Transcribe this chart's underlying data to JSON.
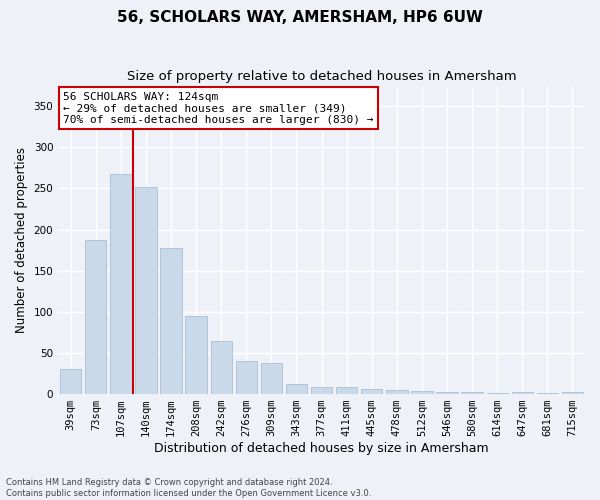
{
  "title": "56, SCHOLARS WAY, AMERSHAM, HP6 6UW",
  "subtitle": "Size of property relative to detached houses in Amersham",
  "xlabel": "Distribution of detached houses by size in Amersham",
  "ylabel": "Number of detached properties",
  "categories": [
    "39sqm",
    "73sqm",
    "107sqm",
    "140sqm",
    "174sqm",
    "208sqm",
    "242sqm",
    "276sqm",
    "309sqm",
    "343sqm",
    "377sqm",
    "411sqm",
    "445sqm",
    "478sqm",
    "512sqm",
    "546sqm",
    "580sqm",
    "614sqm",
    "647sqm",
    "681sqm",
    "715sqm"
  ],
  "values": [
    30,
    187,
    267,
    252,
    178,
    95,
    65,
    40,
    38,
    12,
    9,
    9,
    6,
    5,
    4,
    3,
    3,
    1,
    3,
    1,
    2
  ],
  "bar_color": "#c9d9ea",
  "bar_edgecolor": "#a0b8d0",
  "vline_x_idx": 2,
  "vline_color": "#cc0000",
  "annotation_line1": "56 SCHOLARS WAY: 124sqm",
  "annotation_line2": "← 29% of detached houses are smaller (349)",
  "annotation_line3": "70% of semi-detached houses are larger (830) →",
  "annotation_box_color": "#ffffff",
  "annotation_box_edgecolor": "#cc0000",
  "ylim": [
    0,
    375
  ],
  "yticks": [
    0,
    50,
    100,
    150,
    200,
    250,
    300,
    350
  ],
  "title_fontsize": 11,
  "subtitle_fontsize": 9.5,
  "xlabel_fontsize": 9,
  "ylabel_fontsize": 8.5,
  "tick_fontsize": 7.5,
  "annotation_fontsize": 8,
  "footer_text": "Contains HM Land Registry data © Crown copyright and database right 2024.\nContains public sector information licensed under the Open Government Licence v3.0.",
  "background_color": "#eef2f8",
  "grid_color": "#ffffff"
}
